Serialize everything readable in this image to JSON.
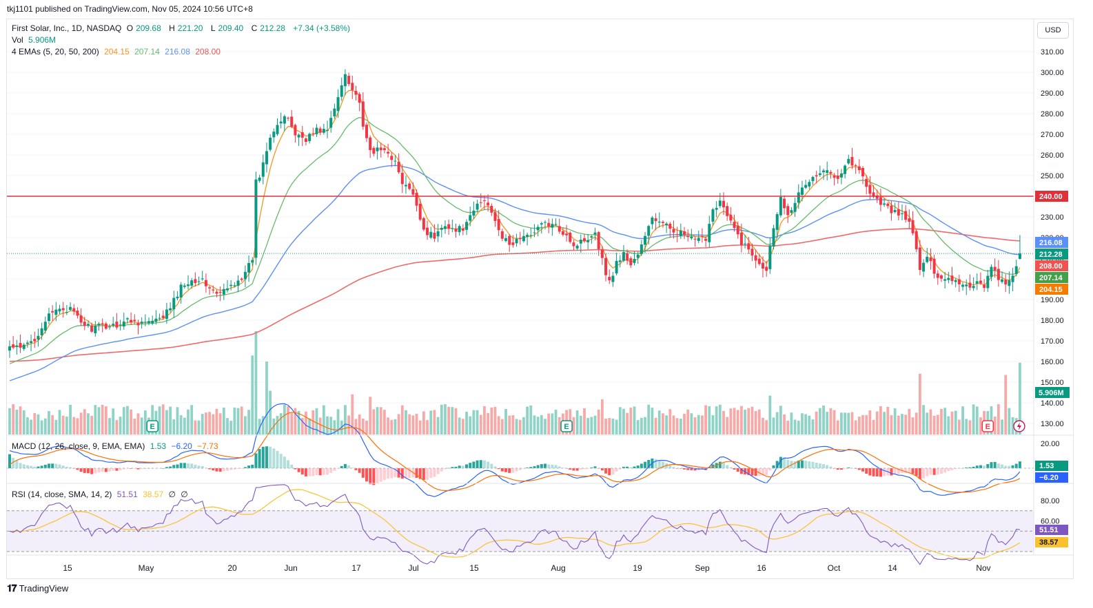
{
  "header": {
    "credit": "tkj1101 published on TradingView.com, Nov 05, 2024 10:56 UTC+8",
    "currency": "USD",
    "brand": "TradingView"
  },
  "legend": {
    "symbol": "First Solar, Inc., 1D, NASDAQ",
    "o_label": "O",
    "o_value": "209.68",
    "h_label": "H",
    "h_value": "221.20",
    "l_label": "L",
    "l_value": "209.40",
    "c_label": "C",
    "c_value": "212.28",
    "change": "+7.34 (+3.58%)",
    "vol_label": "Vol",
    "vol_value": "5.906M",
    "ema_label": "4 EMAs (5, 20, 50, 200)",
    "ema_values": [
      "204.15",
      "207.14",
      "216.08",
      "208.00"
    ],
    "macd_label": "MACD (12, 26, close, 9, EMA, EMA)",
    "macd_values": [
      "1.53",
      "−6.20",
      "−7.73"
    ],
    "rsi_label": "RSI (14, close, SMA, 14, 2)",
    "rsi_values": [
      "51.51",
      "38.57",
      "∅",
      "∅"
    ]
  },
  "colors": {
    "up": "#089981",
    "down": "#f23645",
    "ema5": "#f7941d",
    "ema20": "#66bb6a",
    "ema50": "#5b8ff9",
    "ema200": "#ef6a6a",
    "hline": "#e0303a",
    "macd": "#2962ff",
    "signal": "#ff6d00",
    "rsi": "#7e57c2",
    "rsi_ma": "#fbc02d"
  },
  "markers": {
    "earnings_label": "E"
  },
  "chart_data": {
    "type": "candlestick",
    "price_axis": {
      "min": 125,
      "max": 315,
      "ticks": [
        130,
        140,
        150,
        160,
        170,
        180,
        190,
        200,
        210,
        220,
        230,
        240,
        250,
        260,
        270,
        280,
        290,
        300,
        310
      ]
    },
    "time_axis": {
      "labels": [
        "15",
        "May",
        "20",
        "Jun",
        "17",
        "Jul",
        "15",
        "Aug",
        "19",
        "Sep",
        "16",
        "Oct",
        "14",
        "Nov"
      ]
    },
    "horizontal_line": {
      "value": 240,
      "label": "240.00"
    },
    "price_tags": [
      {
        "label": "216.08",
        "value": 216.08,
        "series": "ema50"
      },
      {
        "label": "212.28",
        "value": 212.28,
        "series": "last"
      },
      {
        "label": "208.00",
        "value": 208.0,
        "series": "ema200"
      },
      {
        "label": "207.14",
        "value": 207.14,
        "series": "ema20"
      },
      {
        "label": "204.15",
        "value": 204.15,
        "series": "ema5"
      }
    ],
    "volume_tag": "5.906M",
    "anchors": [
      [
        0,
        167
      ],
      [
        3,
        166
      ],
      [
        7,
        171
      ],
      [
        10,
        180
      ],
      [
        14,
        186
      ],
      [
        17,
        185
      ],
      [
        20,
        179
      ],
      [
        23,
        176
      ],
      [
        26,
        177
      ],
      [
        30,
        178
      ],
      [
        33,
        180
      ],
      [
        37,
        179
      ],
      [
        40,
        179
      ],
      [
        42,
        180
      ],
      [
        45,
        186
      ],
      [
        48,
        196
      ],
      [
        50,
        199
      ],
      [
        53,
        200
      ],
      [
        56,
        196
      ],
      [
        58,
        192
      ],
      [
        61,
        195
      ],
      [
        64,
        200
      ],
      [
        66,
        202
      ],
      [
        68,
        210
      ],
      [
        69,
        247
      ],
      [
        70,
        250
      ],
      [
        73,
        270
      ],
      [
        75,
        275
      ],
      [
        78,
        278
      ],
      [
        80,
        270
      ],
      [
        83,
        268
      ],
      [
        86,
        272
      ],
      [
        89,
        272
      ],
      [
        91,
        282
      ],
      [
        94,
        300
      ],
      [
        96,
        292
      ],
      [
        98,
        286
      ],
      [
        99,
        272
      ],
      [
        101,
        262
      ],
      [
        103,
        262
      ],
      [
        106,
        262
      ],
      [
        108,
        256
      ],
      [
        110,
        246
      ],
      [
        112,
        243
      ],
      [
        114,
        236
      ],
      [
        116,
        224
      ],
      [
        119,
        220
      ],
      [
        122,
        227
      ],
      [
        125,
        223
      ],
      [
        128,
        226
      ],
      [
        131,
        236
      ],
      [
        133,
        238
      ],
      [
        135,
        233
      ],
      [
        137,
        225
      ],
      [
        138,
        220
      ],
      [
        140,
        216
      ],
      [
        143,
        220
      ],
      [
        145,
        220
      ],
      [
        147,
        224
      ],
      [
        150,
        227
      ],
      [
        153,
        225
      ],
      [
        156,
        222
      ],
      [
        158,
        216
      ],
      [
        161,
        219
      ],
      [
        164,
        223
      ],
      [
        166,
        209
      ],
      [
        168,
        198
      ],
      [
        170,
        208
      ],
      [
        172,
        212
      ],
      [
        174,
        207
      ],
      [
        176,
        212
      ],
      [
        178,
        220
      ],
      [
        180,
        230
      ],
      [
        183,
        226
      ],
      [
        186,
        224
      ],
      [
        189,
        221
      ],
      [
        192,
        218
      ],
      [
        195,
        220
      ],
      [
        197,
        234
      ],
      [
        199,
        238
      ],
      [
        201,
        230
      ],
      [
        203,
        224
      ],
      [
        205,
        218
      ],
      [
        207,
        214
      ],
      [
        209,
        210
      ],
      [
        212,
        205
      ],
      [
        214,
        226
      ],
      [
        216,
        239
      ],
      [
        218,
        232
      ],
      [
        220,
        238
      ],
      [
        223,
        246
      ],
      [
        226,
        250
      ],
      [
        229,
        252
      ],
      [
        232,
        250
      ],
      [
        235,
        258
      ],
      [
        237,
        254
      ],
      [
        239,
        250
      ],
      [
        241,
        242
      ],
      [
        243,
        238
      ],
      [
        245,
        236
      ],
      [
        247,
        232
      ],
      [
        249,
        232
      ],
      [
        251,
        230
      ],
      [
        253,
        222
      ],
      [
        255,
        205
      ],
      [
        257,
        210
      ],
      [
        259,
        204
      ],
      [
        261,
        200
      ],
      [
        263,
        201
      ],
      [
        265,
        199
      ],
      [
        267,
        198
      ],
      [
        269,
        196
      ],
      [
        271,
        199
      ],
      [
        273,
        197
      ],
      [
        275,
        205
      ],
      [
        277,
        201
      ],
      [
        279,
        196
      ],
      [
        281,
        201
      ],
      [
        283,
        212
      ]
    ],
    "volume_m": {
      "baseline": 2.5,
      "spikes": [
        [
          68,
          6.5
        ],
        [
          69,
          8.5
        ],
        [
          72,
          6.0
        ],
        [
          73,
          3.6
        ],
        [
          96,
          3.3
        ],
        [
          101,
          3.1
        ],
        [
          166,
          2.9
        ],
        [
          213,
          3.2
        ],
        [
          255,
          5.0
        ],
        [
          279,
          4.9
        ],
        [
          283,
          5.906
        ]
      ]
    },
    "earnings_days": [
      40,
      156,
      274
    ],
    "macd": {
      "range": [
        -10,
        25
      ],
      "ticks": [
        20
      ],
      "last_macd": 1.53,
      "last_signal": -6.2
    },
    "rsi": {
      "range": [
        20,
        100
      ],
      "ticks": [
        60,
        80
      ],
      "bands": [
        30,
        50,
        70
      ],
      "last_rsi": 51.51,
      "last_ma": 38.57
    }
  }
}
